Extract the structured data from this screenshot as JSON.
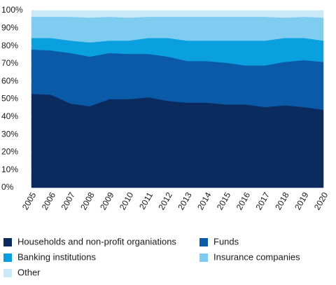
{
  "chart_data": {
    "type": "stacked_area",
    "categories": [
      "2005",
      "2006",
      "2007",
      "2008",
      "2009",
      "2010",
      "2011",
      "2012",
      "2013",
      "2014",
      "2015",
      "2016",
      "2017",
      "2018",
      "2019",
      "2020"
    ],
    "series": [
      {
        "name": "Households and non-profit organiations",
        "color": "#0b2b5e",
        "values": [
          53,
          52.5,
          47.5,
          46,
          50,
          50,
          51,
          49,
          48,
          48,
          47,
          47,
          45.5,
          46.5,
          45.5,
          44
        ]
      },
      {
        "name": "Funds",
        "color": "#0a5aa8",
        "values": [
          25,
          25,
          28.5,
          28,
          26,
          25.5,
          24.5,
          25,
          23.5,
          23.5,
          23.5,
          22,
          23.5,
          24.5,
          26.5,
          27
        ]
      },
      {
        "name": "Banking institutions",
        "color": "#0aa0e0",
        "values": [
          6.5,
          7,
          7,
          8,
          7,
          7.5,
          9,
          10.5,
          11.5,
          11.5,
          12.5,
          14,
          14,
          13.5,
          12.5,
          12
        ]
      },
      {
        "name": "Insurance companies",
        "color": "#7ecdf1",
        "values": [
          12,
          12,
          13.5,
          14,
          13.5,
          13,
          12,
          12,
          13.5,
          13.5,
          13.5,
          13.5,
          13.5,
          11.5,
          12,
          13
        ]
      },
      {
        "name": "Other",
        "color": "#c9e8f8",
        "values": [
          3.5,
          3.5,
          3.5,
          4,
          3.5,
          4,
          3.5,
          3.5,
          3.5,
          3.5,
          3.5,
          3.5,
          3.5,
          4,
          3.5,
          4
        ]
      }
    ],
    "ylim": [
      0,
      100
    ],
    "yticks": [
      {
        "value": 0,
        "label": "0%"
      },
      {
        "value": 10,
        "label": "10%"
      },
      {
        "value": 20,
        "label": "20%"
      },
      {
        "value": 30,
        "label": "30%"
      },
      {
        "value": 40,
        "label": "40%"
      },
      {
        "value": 50,
        "label": "50%"
      },
      {
        "value": 60,
        "label": "60%"
      },
      {
        "value": 70,
        "label": "70%"
      },
      {
        "value": 80,
        "label": "80%"
      },
      {
        "value": 90,
        "label": "90%"
      },
      {
        "value": 100,
        "label": "100%"
      }
    ],
    "legend": "bottom"
  }
}
